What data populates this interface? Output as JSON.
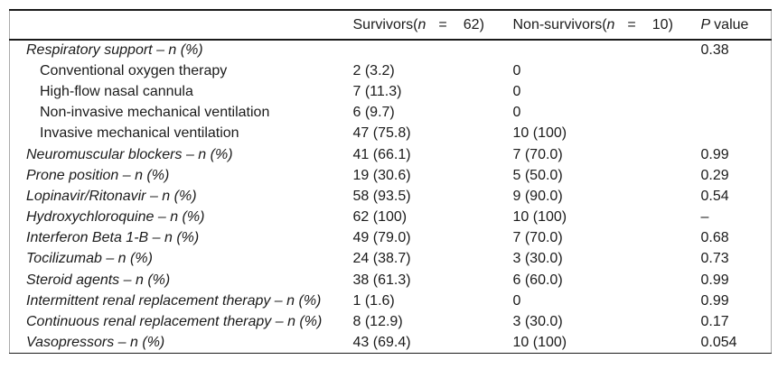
{
  "table": {
    "header": {
      "label_column": "",
      "survivors": {
        "prefix": "Survivors(",
        "var": "n",
        "eq": "=",
        "count": "62)"
      },
      "non_survivors": {
        "prefix": "Non-survivors(",
        "var": "n",
        "eq": "=",
        "count": "10)"
      },
      "p_value": {
        "var": "P",
        "label": "value"
      }
    },
    "rows": [
      {
        "label": "Respiratory support – n (%)",
        "italic": true,
        "indent": false,
        "survivors": "",
        "non_survivors": "",
        "p_value": "0.38"
      },
      {
        "label": "Conventional oxygen therapy",
        "italic": false,
        "indent": true,
        "survivors": "2 (3.2)",
        "non_survivors": "0",
        "p_value": ""
      },
      {
        "label": "High-flow nasal cannula",
        "italic": false,
        "indent": true,
        "survivors": "7 (11.3)",
        "non_survivors": "0",
        "p_value": ""
      },
      {
        "label": "Non-invasive mechanical ventilation",
        "italic": false,
        "indent": true,
        "survivors": "6 (9.7)",
        "non_survivors": "0",
        "p_value": ""
      },
      {
        "label": "Invasive mechanical ventilation",
        "italic": false,
        "indent": true,
        "survivors": "47 (75.8)",
        "non_survivors": "10 (100)",
        "p_value": ""
      },
      {
        "label": "Neuromuscular blockers – n (%)",
        "italic": true,
        "indent": false,
        "survivors": "41 (66.1)",
        "non_survivors": "7 (70.0)",
        "p_value": "0.99"
      },
      {
        "label": "Prone position – n (%)",
        "italic": true,
        "indent": false,
        "survivors": "19 (30.6)",
        "non_survivors": "5 (50.0)",
        "p_value": "0.29"
      },
      {
        "label": "Lopinavir/Ritonavir – n (%)",
        "italic": true,
        "indent": false,
        "survivors": "58 (93.5)",
        "non_survivors": "9 (90.0)",
        "p_value": "0.54"
      },
      {
        "label": "Hydroxychloroquine – n (%)",
        "italic": true,
        "indent": false,
        "survivors": "62 (100)",
        "non_survivors": "10 (100)",
        "p_value": "–"
      },
      {
        "label": "Interferon Beta 1-B – n (%)",
        "italic": true,
        "indent": false,
        "survivors": "49 (79.0)",
        "non_survivors": "7 (70.0)",
        "p_value": "0.68"
      },
      {
        "label": "Tocilizumab – n (%)",
        "italic": true,
        "indent": false,
        "survivors": "24 (38.7)",
        "non_survivors": "3 (30.0)",
        "p_value": "0.73"
      },
      {
        "label": "Steroid agents – n (%)",
        "italic": true,
        "indent": false,
        "survivors": "38 (61.3)",
        "non_survivors": "6 (60.0)",
        "p_value": "0.99"
      },
      {
        "label": "Intermittent renal replacement therapy – n (%)",
        "italic": true,
        "indent": false,
        "survivors": "1 (1.6)",
        "non_survivors": "0",
        "p_value": "0.99"
      },
      {
        "label": "Continuous renal replacement therapy – n (%)",
        "italic": true,
        "indent": false,
        "survivors": "8 (12.9)",
        "non_survivors": "3 (30.0)",
        "p_value": "0.17"
      },
      {
        "label": "Vasopressors – n (%)",
        "italic": true,
        "indent": false,
        "survivors": "43 (69.4)",
        "non_survivors": "10 (100)",
        "p_value": "0.054"
      }
    ]
  },
  "colors": {
    "background": "#ffffff",
    "text": "#1b1b1b",
    "rule_dark": "#1a1a1a",
    "rule_light": "#ababab"
  }
}
